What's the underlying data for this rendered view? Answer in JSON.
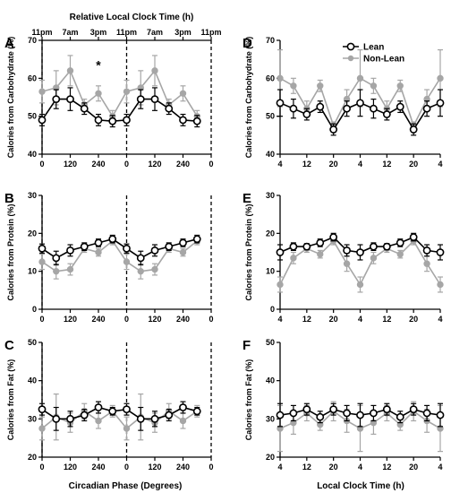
{
  "colors": {
    "lean": "#000000",
    "nonlean": "#a6a6a6"
  },
  "top_axis_label": "Relative Local Clock Time (h)",
  "top_tick_labels": [
    "11pm",
    "7am",
    "3pm",
    "11pm",
    "7am",
    "3pm",
    "11pm"
  ],
  "left_xlabel": "Circadian Phase (Degrees)",
  "right_xlabel": "Local Clock Time (h)",
  "chart_data": [
    {
      "panel": "A",
      "type": "line",
      "xlabel": "",
      "ylabel": "Calories from Carbohydrate (%)",
      "ylim": [
        40,
        70
      ],
      "yticks": [
        "40",
        "50",
        "60",
        "70"
      ],
      "xlim": [
        0,
        720
      ],
      "xticks": [
        0,
        120,
        240,
        360,
        480,
        600,
        720
      ],
      "xtick_labels": [
        "0",
        "120",
        "240",
        "0",
        "120",
        "240",
        "0"
      ],
      "vlines": [
        0,
        360,
        720
      ],
      "annotation": {
        "text": "*",
        "x": 240,
        "y": 63.5
      },
      "x": [
        0,
        60,
        120,
        180,
        240,
        300,
        360,
        420,
        480,
        540,
        600,
        660
      ],
      "series": [
        {
          "name": "Lean",
          "values": [
            49,
            54.5,
            54.5,
            52,
            49,
            48.7,
            49,
            54.5,
            54.5,
            52,
            49,
            48.7
          ],
          "err": [
            1.5,
            2.5,
            3,
            1.5,
            1.5,
            1.5,
            1.5,
            2.5,
            3,
            1.5,
            1.5,
            1.5
          ]
        },
        {
          "name": "Non-Lean",
          "values": [
            56.5,
            57.5,
            62,
            53,
            56,
            50,
            56.5,
            57.5,
            62,
            53,
            56,
            50
          ],
          "err": [
            3,
            4.5,
            4,
            1.5,
            2,
            1.5,
            3,
            4.5,
            4,
            1.5,
            2,
            1.5
          ]
        }
      ]
    },
    {
      "panel": "B",
      "type": "line",
      "xlabel": "",
      "ylabel": "Calories from Protein (%)",
      "ylim": [
        0,
        30
      ],
      "yticks": [
        "0",
        "10",
        "20",
        "30"
      ],
      "xlim": [
        0,
        720
      ],
      "xticks": [
        0,
        120,
        240,
        360,
        480,
        600,
        720
      ],
      "xtick_labels": [
        "0",
        "120",
        "240",
        "0",
        "120",
        "240",
        "0"
      ],
      "vlines": [
        0,
        360,
        720
      ],
      "x": [
        0,
        60,
        120,
        180,
        240,
        300,
        360,
        420,
        480,
        540,
        600,
        660
      ],
      "series": [
        {
          "name": "Lean",
          "values": [
            16,
            13.5,
            15.5,
            16.5,
            17.5,
            18.5,
            16,
            13.5,
            15.5,
            16.5,
            17.5,
            18.5
          ],
          "err": [
            1.2,
            1.8,
            1.5,
            1,
            1,
            1,
            1.2,
            1.8,
            1.5,
            1,
            1,
            1
          ]
        },
        {
          "name": "Non-Lean",
          "values": [
            12.5,
            10,
            10.5,
            16,
            15,
            18,
            12.5,
            10,
            10.5,
            16,
            15,
            18
          ],
          "err": [
            2,
            2,
            1.5,
            1,
            1,
            1,
            2,
            2,
            1.5,
            1,
            1,
            1
          ]
        }
      ]
    },
    {
      "panel": "C",
      "type": "line",
      "xlabel": "Circadian Phase (Degrees)",
      "ylabel": "Calories from Fat (%)",
      "ylim": [
        20,
        50
      ],
      "yticks": [
        "20",
        "30",
        "40",
        "50"
      ],
      "xlim": [
        0,
        720
      ],
      "xticks": [
        0,
        120,
        240,
        360,
        480,
        600,
        720
      ],
      "xtick_labels": [
        "0",
        "120",
        "240",
        "0",
        "120",
        "240",
        "0"
      ],
      "vlines": [
        0,
        360,
        720
      ],
      "x": [
        0,
        60,
        120,
        180,
        240,
        300,
        360,
        420,
        480,
        540,
        600,
        660
      ],
      "series": [
        {
          "name": "Lean",
          "values": [
            32.5,
            30,
            30,
            31,
            33,
            32,
            32.5,
            30,
            30,
            31,
            33,
            32
          ],
          "err": [
            1.5,
            3,
            2,
            1.5,
            1.5,
            1,
            1.5,
            3,
            2,
            1.5,
            1.5,
            1
          ]
        },
        {
          "name": "Non-Lean",
          "values": [
            27.5,
            30.5,
            29,
            32,
            29.5,
            32,
            27.5,
            30.5,
            29,
            32,
            29.5,
            32
          ],
          "err": [
            3,
            6,
            2.5,
            2,
            2,
            1.5,
            3,
            6,
            2.5,
            2,
            2,
            1.5
          ]
        }
      ]
    },
    {
      "panel": "D",
      "type": "line",
      "xlabel": "",
      "ylabel": "Calories from Carbohydrate (%)",
      "ylim": [
        40,
        70
      ],
      "yticks": [
        "40",
        "50",
        "60",
        "70"
      ],
      "xlim": [
        4,
        52
      ],
      "xticks": [
        4,
        12,
        20,
        28,
        36,
        44,
        52
      ],
      "xtick_labels": [
        "4",
        "12",
        "20",
        "4",
        "12",
        "20",
        "4"
      ],
      "legend": {
        "placement": "top-right",
        "entries": [
          "Lean",
          "Non-Lean"
        ]
      },
      "x": [
        4,
        8,
        12,
        16,
        20,
        24,
        28,
        32,
        36,
        40,
        44,
        48,
        52
      ],
      "series": [
        {
          "name": "Lean",
          "values": [
            53.5,
            52,
            50.5,
            52.5,
            46.5,
            52,
            53.5,
            52,
            50.5,
            52.5,
            46.5,
            52,
            53.5
          ],
          "err": [
            3.5,
            2.5,
            1.5,
            1.5,
            1.5,
            2,
            3.5,
            2.5,
            1.5,
            1.5,
            1.5,
            2,
            3.5
          ]
        },
        {
          "name": "Non-Lean",
          "values": [
            60,
            58,
            52,
            58,
            47.5,
            54.5,
            60,
            58,
            52,
            58,
            47.5,
            54.5,
            60
          ],
          "err": [
            7.5,
            2,
            2,
            1.5,
            1,
            2.5,
            7.5,
            2,
            2,
            1.5,
            1,
            2.5,
            7.5
          ]
        }
      ]
    },
    {
      "panel": "E",
      "type": "line",
      "xlabel": "",
      "ylabel": "Calories from Protein (%)",
      "ylim": [
        0,
        30
      ],
      "yticks": [
        "0",
        "10",
        "20",
        "30"
      ],
      "xlim": [
        4,
        52
      ],
      "xticks": [
        4,
        12,
        20,
        28,
        36,
        44,
        52
      ],
      "xtick_labels": [
        "4",
        "12",
        "20",
        "4",
        "12",
        "20",
        "4"
      ],
      "x": [
        4,
        8,
        12,
        16,
        20,
        24,
        28,
        32,
        36,
        40,
        44,
        48,
        52
      ],
      "series": [
        {
          "name": "Lean",
          "values": [
            15,
            16.5,
            16.5,
            17.5,
            19,
            15.5,
            15,
            16.5,
            16.5,
            17.5,
            19,
            15.5,
            15
          ],
          "err": [
            2,
            1,
            0.8,
            1,
            1,
            1.5,
            2,
            1,
            0.8,
            1,
            1,
            1.5,
            2
          ]
        },
        {
          "name": "Non-Lean",
          "values": [
            6.5,
            13.5,
            16,
            14.5,
            18,
            12,
            6.5,
            13.5,
            16,
            14.5,
            18,
            12,
            6.5
          ],
          "err": [
            2,
            1.5,
            1,
            1,
            1,
            2,
            2,
            1.5,
            1,
            1,
            1,
            2,
            2
          ]
        }
      ]
    },
    {
      "panel": "F",
      "type": "line",
      "xlabel": "Local Clock Time (h)",
      "ylabel": "Calories from Fat (%)",
      "ylim": [
        20,
        50
      ],
      "yticks": [
        "20",
        "30",
        "40",
        "50"
      ],
      "xlim": [
        4,
        52
      ],
      "xticks": [
        4,
        12,
        20,
        28,
        36,
        44,
        52
      ],
      "xtick_labels": [
        "4",
        "12",
        "20",
        "4",
        "12",
        "20",
        "4"
      ],
      "x": [
        4,
        8,
        12,
        16,
        20,
        24,
        28,
        32,
        36,
        40,
        44,
        48,
        52
      ],
      "series": [
        {
          "name": "Lean",
          "values": [
            31,
            31.5,
            32.5,
            30.5,
            32.5,
            31.5,
            31,
            31.5,
            32.5,
            30.5,
            32.5,
            31.5,
            31
          ],
          "err": [
            3,
            2,
            1.5,
            1.5,
            1.5,
            2,
            3,
            2,
            1.5,
            1.5,
            1.5,
            2,
            3
          ]
        },
        {
          "name": "Non-Lean",
          "values": [
            27.5,
            29,
            31.5,
            28.5,
            32,
            29.5,
            27.5,
            29,
            31.5,
            28.5,
            32,
            29.5,
            27.5
          ],
          "err": [
            6,
            3,
            2,
            1.5,
            2.5,
            3,
            6,
            3,
            2,
            1.5,
            2.5,
            3,
            6
          ]
        }
      ]
    }
  ]
}
